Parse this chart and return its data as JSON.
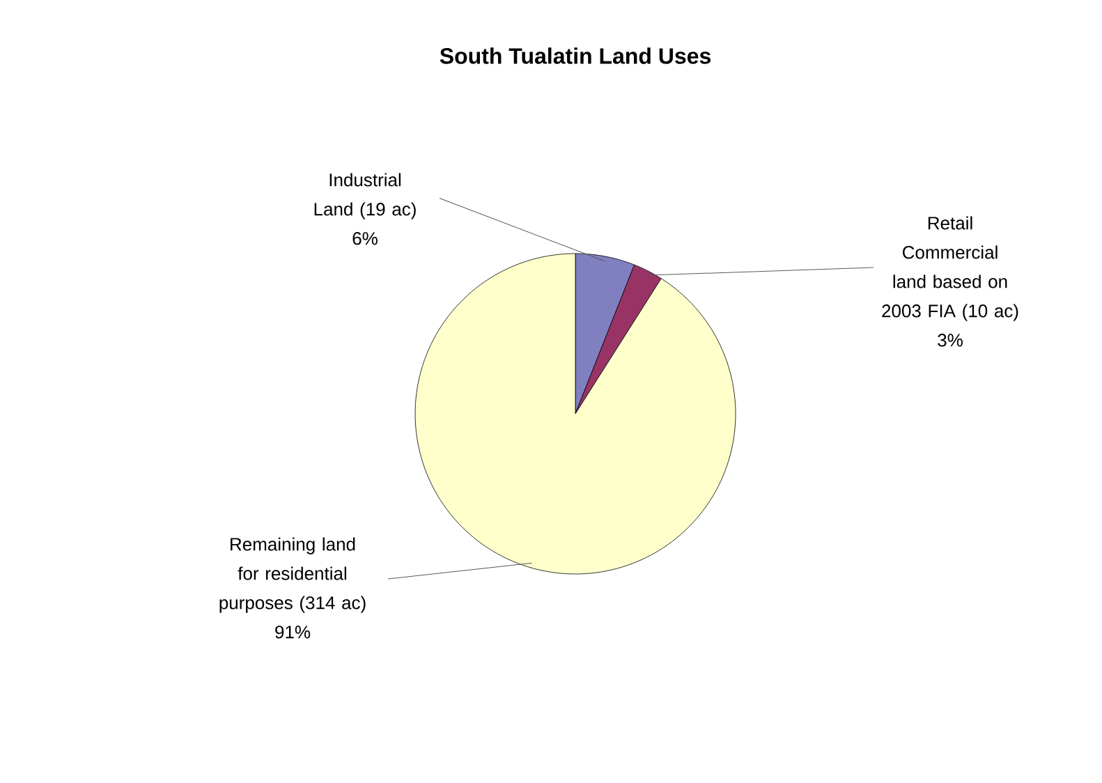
{
  "chart_data": {
    "type": "pie",
    "title": "South Tualatin Land Uses",
    "categories": [
      "Industrial Land (19 ac)",
      "Retail Commercial land based on 2003 FIA (10 ac)",
      "Remaining land for residential purposes (314 ac)"
    ],
    "values": [
      6,
      3,
      91
    ],
    "value_labels": [
      "6%",
      "3%",
      "91%"
    ],
    "colors": [
      "#8080c0",
      "#993366",
      "#ffffcc"
    ]
  }
}
